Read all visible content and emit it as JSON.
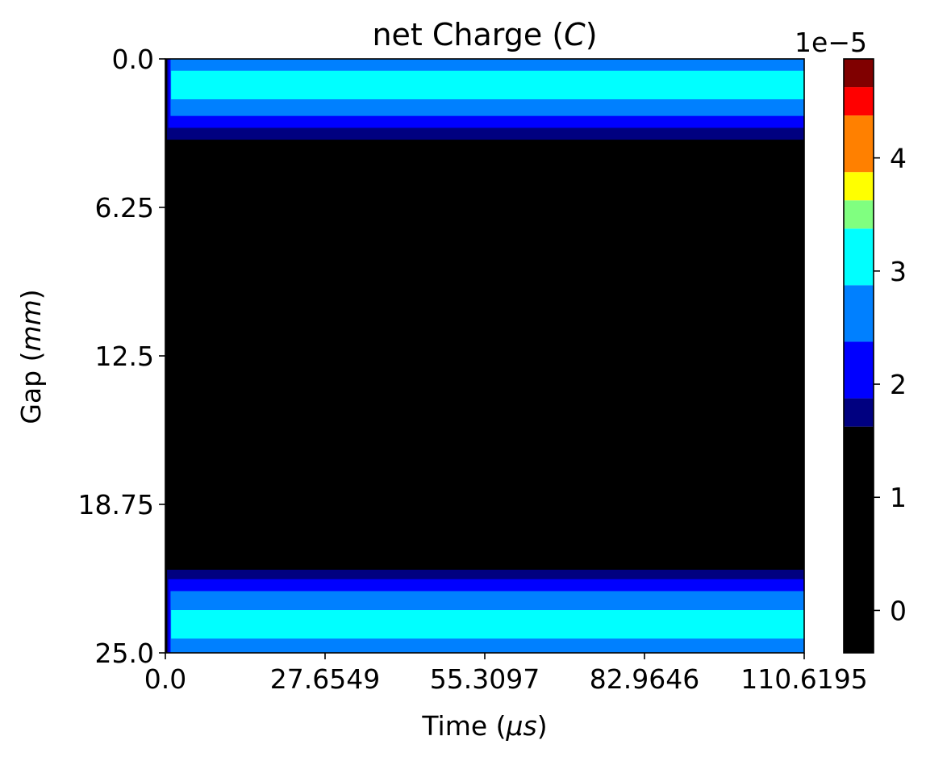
{
  "chart_data": {
    "type": "heatmap",
    "subtype": "filled-contour",
    "title": "net Charge (C)",
    "title_parts": {
      "text": "net Charge (",
      "var": "C",
      "close": ")"
    },
    "xlabel": "Time (μs)",
    "xlabel_parts": {
      "text": "Time (",
      "var": "μs",
      "close": ")"
    },
    "ylabel": "Gap (mm)",
    "ylabel_parts": {
      "text": "Gap (",
      "var": "mm",
      "close": ")"
    },
    "xlim": [
      0.0,
      110.6195
    ],
    "ylim": [
      25.0,
      0.0
    ],
    "y_inverted": true,
    "x_ticks": [
      "0.0",
      "27.6549",
      "55.3097",
      "82.9646",
      "110.6195"
    ],
    "x_tick_values": [
      0.0,
      27.6549,
      55.3097,
      82.9646,
      110.6195
    ],
    "y_ticks": [
      "0.0",
      "6.25",
      "12.5",
      "18.75",
      "25.0"
    ],
    "y_tick_values": [
      0.0,
      6.25,
      12.5,
      18.75,
      25.0
    ],
    "colormap": "jet",
    "colorbar": {
      "scale_label": "1e−5",
      "tick_labels": [
        "0",
        "1",
        "2",
        "3",
        "4"
      ],
      "tick_values": [
        0,
        1,
        2,
        3,
        4
      ],
      "range": [
        -0.375,
        4.875
      ],
      "levels": [
        {
          "from": -0.375,
          "to": 1.625,
          "color": "#000000"
        },
        {
          "from": 1.625,
          "to": 1.875,
          "color": "#000080"
        },
        {
          "from": 1.875,
          "to": 2.375,
          "color": "#0000ff"
        },
        {
          "from": 2.375,
          "to": 2.875,
          "color": "#0080ff"
        },
        {
          "from": 2.875,
          "to": 3.375,
          "color": "#00ffff"
        },
        {
          "from": 3.375,
          "to": 3.625,
          "color": "#80ff80"
        },
        {
          "from": 3.625,
          "to": 3.875,
          "color": "#ffff00"
        },
        {
          "from": 3.875,
          "to": 4.375,
          "color": "#ff8000"
        },
        {
          "from": 4.375,
          "to": 4.625,
          "color": "#ff0000"
        },
        {
          "from": 4.625,
          "to": 4.875,
          "color": "#800000"
        }
      ]
    },
    "regions": [
      {
        "name": "background",
        "t": [
          0.0,
          110.6195
        ],
        "gap": [
          0.0,
          25.0
        ],
        "color": "#000000"
      },
      {
        "name": "top-dark-navy-band",
        "t": [
          0.3,
          110.6195
        ],
        "gap": [
          0.0,
          3.4
        ],
        "color": "#000080"
      },
      {
        "name": "top-blue-band",
        "t": [
          0.5,
          110.6195
        ],
        "gap": [
          0.0,
          2.9
        ],
        "color": "#0000ff"
      },
      {
        "name": "top-azure-band",
        "t": [
          0.9,
          110.6195
        ],
        "gap": [
          0.0,
          2.4
        ],
        "color": "#0080ff"
      },
      {
        "name": "top-cyan-core",
        "t": [
          1.0,
          110.6195
        ],
        "gap": [
          0.5,
          1.7
        ],
        "color": "#00ffff"
      },
      {
        "name": "bottom-dark-navy-band",
        "t": [
          0.3,
          110.6195
        ],
        "gap": [
          21.5,
          25.0
        ],
        "color": "#000080"
      },
      {
        "name": "bottom-blue-band",
        "t": [
          0.5,
          110.6195
        ],
        "gap": [
          21.9,
          25.0
        ],
        "color": "#0000ff"
      },
      {
        "name": "bottom-azure-band",
        "t": [
          0.9,
          110.6195
        ],
        "gap": [
          22.4,
          25.0
        ],
        "color": "#0080ff"
      },
      {
        "name": "bottom-cyan-core",
        "t": [
          1.0,
          110.6195
        ],
        "gap": [
          23.2,
          24.4
        ],
        "color": "#00ffff"
      }
    ],
    "grid": false,
    "legend": "none"
  }
}
